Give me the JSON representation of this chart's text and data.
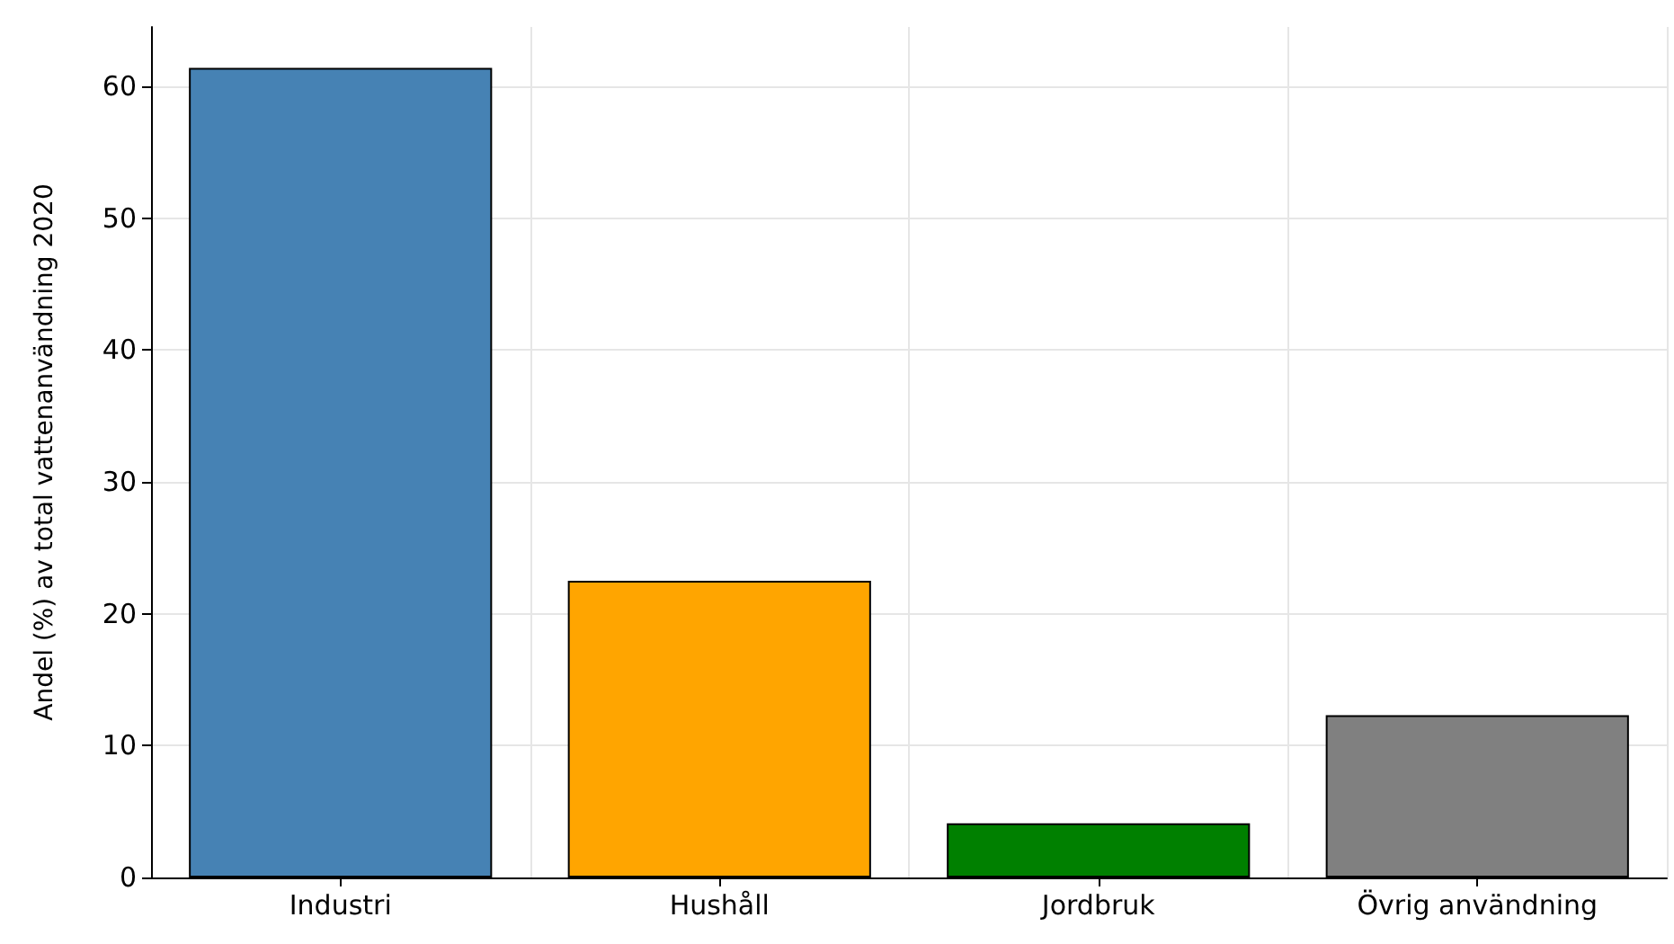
{
  "chart_data": {
    "type": "bar",
    "ylabel": "Andel (%) av total vattenanvändning 2020",
    "categories": [
      "Industri",
      "Hushåll",
      "Jordbruk",
      "Övrig användning"
    ],
    "values": [
      61.4,
      22.5,
      4.1,
      12.3
    ],
    "colors": [
      "#4682b4",
      "#ffa500",
      "#008000",
      "#808080"
    ],
    "ylim": [
      0,
      64.5
    ],
    "yticks": [
      0,
      10,
      20,
      30,
      40,
      50,
      60
    ],
    "grid": true
  }
}
